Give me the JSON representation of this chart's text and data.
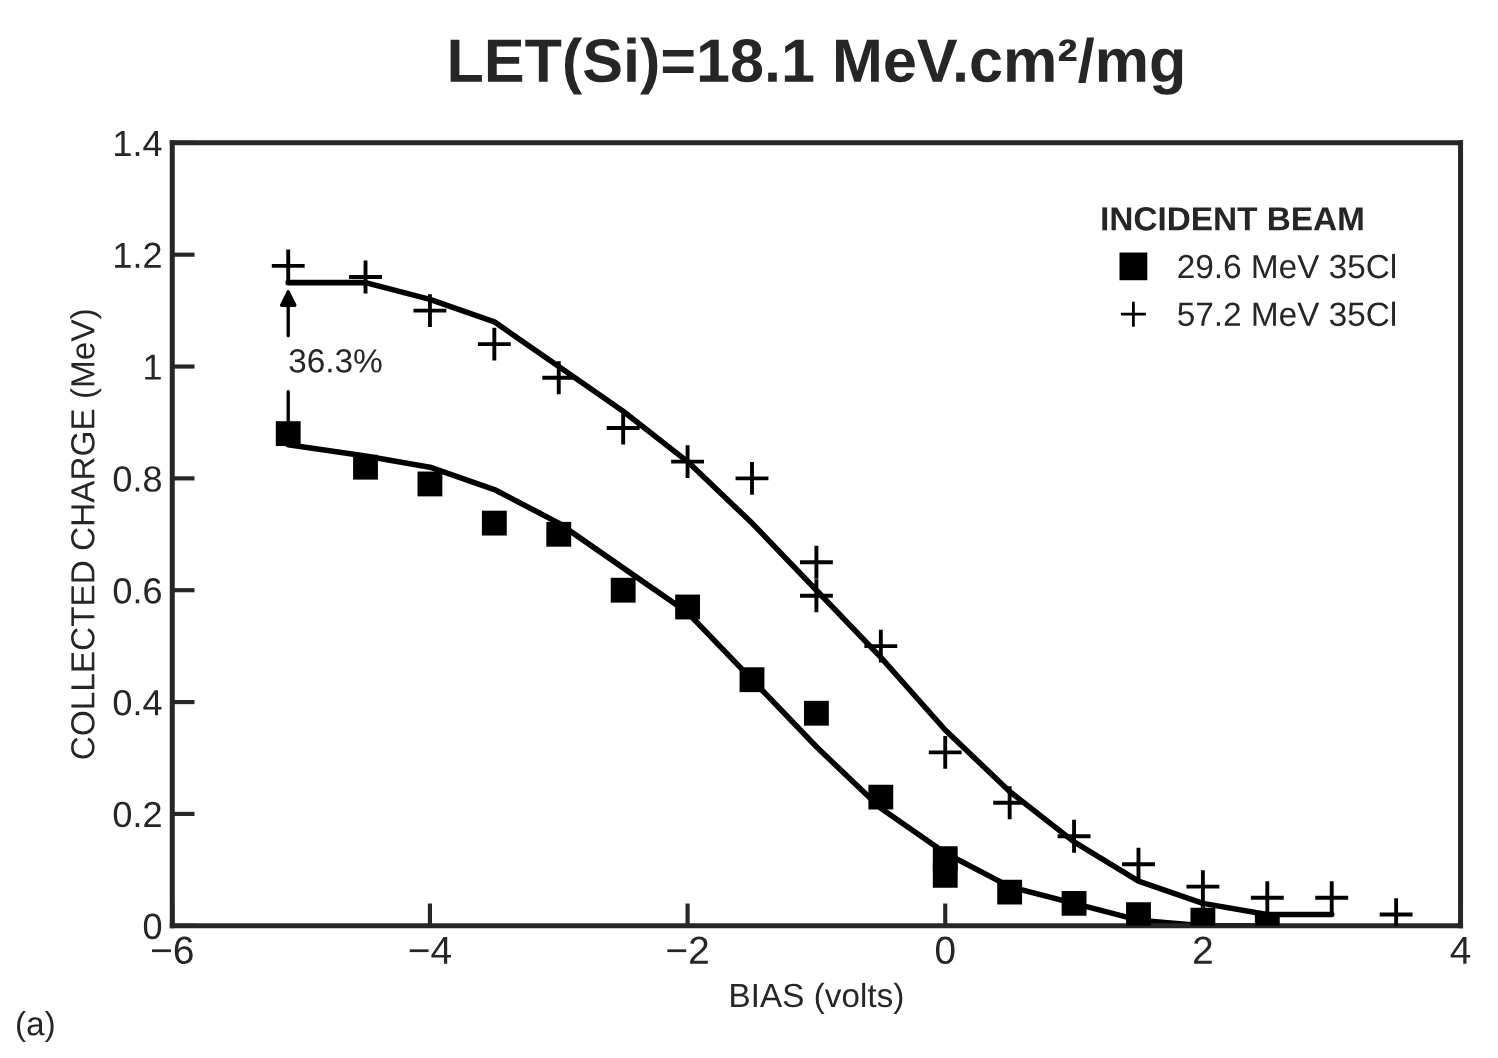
{
  "chart_data": {
    "type": "scatter",
    "title": "LET(Si)=18.1 MeV.cm²/mg",
    "xlabel": "BIAS (volts)",
    "ylabel": "COLLECTED CHARGE (MeV)",
    "legend_title": "INCIDENT BEAM",
    "legend": "top right",
    "grid": false,
    "xlim": [
      -6,
      4
    ],
    "ylim": [
      0,
      1.4
    ],
    "xticks": [
      {
        "value": -6,
        "label": "−6"
      },
      {
        "value": -4,
        "label": "−4"
      },
      {
        "value": -2,
        "label": "−2"
      },
      0,
      2,
      4
    ],
    "yticks": [
      0,
      0.2,
      0.4,
      0.6,
      0.8,
      1,
      1.2,
      1.4
    ],
    "series": [
      {
        "name": "29.6 MeV 35Cl",
        "marker": "square",
        "color": "#000000",
        "x": [
          -5.1,
          -4.5,
          -4,
          -3.5,
          -3,
          -2.5,
          -2,
          -1.5,
          -1,
          -0.5,
          0,
          0,
          0.5,
          1,
          1.5,
          2,
          2.5
        ],
        "values": [
          0.88,
          0.82,
          0.79,
          0.72,
          0.7,
          0.6,
          0.57,
          0.44,
          0.38,
          0.23,
          0.12,
          0.09,
          0.06,
          0.04,
          0.02,
          0.01,
          0.0
        ]
      },
      {
        "name": "57.2 MeV 35Cl",
        "marker": "cross",
        "color": "#000000",
        "x": [
          -5.1,
          -4.5,
          -4,
          -3.5,
          -3,
          -2.5,
          -2,
          -1.5,
          -1,
          -1,
          -0.5,
          0,
          0.5,
          1,
          1.5,
          2,
          2.5,
          3,
          3.5
        ],
        "values": [
          1.18,
          1.16,
          1.1,
          1.04,
          0.98,
          0.89,
          0.83,
          0.8,
          0.65,
          0.59,
          0.5,
          0.31,
          0.22,
          0.16,
          0.11,
          0.07,
          0.05,
          0.05,
          0.02
        ]
      },
      {
        "type": "line",
        "color": "#000000",
        "line_style": "solid",
        "x": [
          -5.1,
          -4.5,
          -4,
          -3.5,
          -3,
          -2.5,
          -2,
          -1.5,
          -1,
          -0.5,
          0,
          0.5,
          1,
          1.5,
          2,
          2.5,
          3
        ],
        "values": [
          1.15,
          1.15,
          1.12,
          1.08,
          1.0,
          0.92,
          0.83,
          0.72,
          0.6,
          0.48,
          0.35,
          0.24,
          0.15,
          0.08,
          0.04,
          0.02,
          0.02
        ]
      },
      {
        "type": "line",
        "color": "#000000",
        "line_style": "solid",
        "x": [
          -5.1,
          -4.5,
          -4,
          -3.5,
          -3,
          -2.5,
          -2,
          -1.5,
          -1,
          -0.5,
          0,
          0.5,
          1,
          1.5,
          2,
          2.5
        ],
        "values": [
          0.86,
          0.84,
          0.82,
          0.78,
          0.72,
          0.64,
          0.56,
          0.44,
          0.32,
          0.21,
          0.13,
          0.07,
          0.04,
          0.01,
          0.0,
          0.0
        ]
      }
    ],
    "annotations": [
      {
        "text": "36.3%",
        "x": -5.1,
        "y": 1.15
      },
      "(a)"
    ]
  }
}
